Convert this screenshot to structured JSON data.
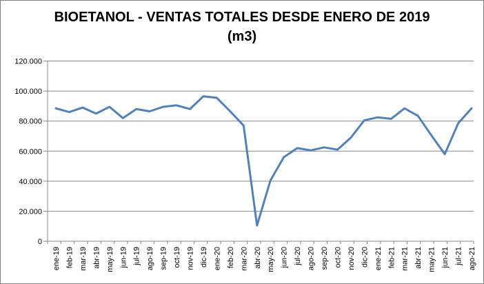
{
  "chart_data": {
    "type": "line",
    "title": "BIOETANOL - VENTAS TOTALES DESDE ENERO DE 2019",
    "subtitle": "(m3)",
    "xlabel": "",
    "ylabel": "",
    "grid": true,
    "legend": "none",
    "ylim": [
      0,
      120000
    ],
    "yticks": {
      "values": [
        0,
        20000,
        40000,
        60000,
        80000,
        100000,
        120000
      ],
      "labels": [
        "0",
        "20.000",
        "40.000",
        "60.000",
        "80.000",
        "100.000",
        "120.000"
      ]
    },
    "categories": [
      "ene-19",
      "feb-19",
      "mar-19",
      "abr-19",
      "may-19",
      "jun-19",
      "jul-19",
      "ago-19",
      "sep-19",
      "oct-19",
      "nov-19",
      "dic-19",
      "ene-20",
      "feb-20",
      "mar-20",
      "abr-20",
      "may-20",
      "jun-20",
      "jul-20",
      "ago-20",
      "sep-20",
      "oct-20",
      "nov-20",
      "dic-20",
      "ene-21",
      "feb-21",
      "mar-21",
      "abr-21",
      "may-21",
      "jun-21",
      "jul-21",
      "ago-21"
    ],
    "values": [
      88500,
      86000,
      89000,
      85000,
      89500,
      82000,
      88000,
      86500,
      89500,
      90500,
      88000,
      96500,
      95500,
      86500,
      77000,
      10500,
      40500,
      56000,
      62000,
      60500,
      62500,
      61000,
      69000,
      80500,
      82500,
      81500,
      88500,
      83500,
      70500,
      58000,
      78500,
      88500
    ],
    "colors": {
      "line": "#4F81BD",
      "gridline": "#878787",
      "axis": "#878787",
      "border": "#7F7F7F",
      "title": "#000000"
    }
  }
}
